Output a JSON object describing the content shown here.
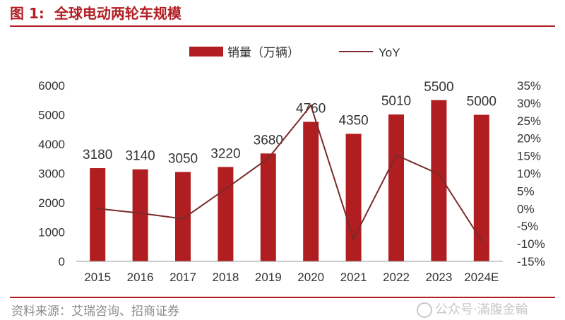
{
  "figure": {
    "label": "图 1:",
    "title": "全球电动两轮车规模",
    "source": "资料来源：艾瑞咨询、招商证券",
    "watermark": "公众号·滿腹金輪"
  },
  "colors": {
    "brand_red": "#b11f24",
    "bar": "#b01e22",
    "line": "#7a2a2a",
    "axis_text": "#333333"
  },
  "chart_data": {
    "type": "bar",
    "categories": [
      "2015",
      "2016",
      "2017",
      "2018",
      "2019",
      "2020",
      "2021",
      "2022",
      "2023",
      "2024E"
    ],
    "series": [
      {
        "name": "销量（万辆）",
        "type": "bar",
        "axis": "left",
        "values": [
          3180,
          3140,
          3050,
          3220,
          3680,
          4760,
          4350,
          5010,
          5500,
          5000
        ],
        "data_labels": [
          "3180",
          "3140",
          "3050",
          "3220",
          "3680",
          "4760",
          "4350",
          "5010",
          "5500",
          "5000"
        ]
      },
      {
        "name": "YoY",
        "type": "line",
        "axis": "right",
        "values": [
          0.0,
          -1.3,
          -2.9,
          5.6,
          14.3,
          29.3,
          -8.6,
          15.2,
          9.8,
          -9.1
        ]
      }
    ],
    "y_left": {
      "min": 0,
      "max": 6000,
      "ticks": [
        "0",
        "1000",
        "2000",
        "3000",
        "4000",
        "5000",
        "6000"
      ]
    },
    "y_right": {
      "min": -15,
      "max": 35,
      "ticks": [
        "-15%",
        "-10%",
        "-5%",
        "0%",
        "5%",
        "10%",
        "15%",
        "20%",
        "25%",
        "30%",
        "35%"
      ]
    },
    "legend_position": "top-center",
    "grid": false
  }
}
